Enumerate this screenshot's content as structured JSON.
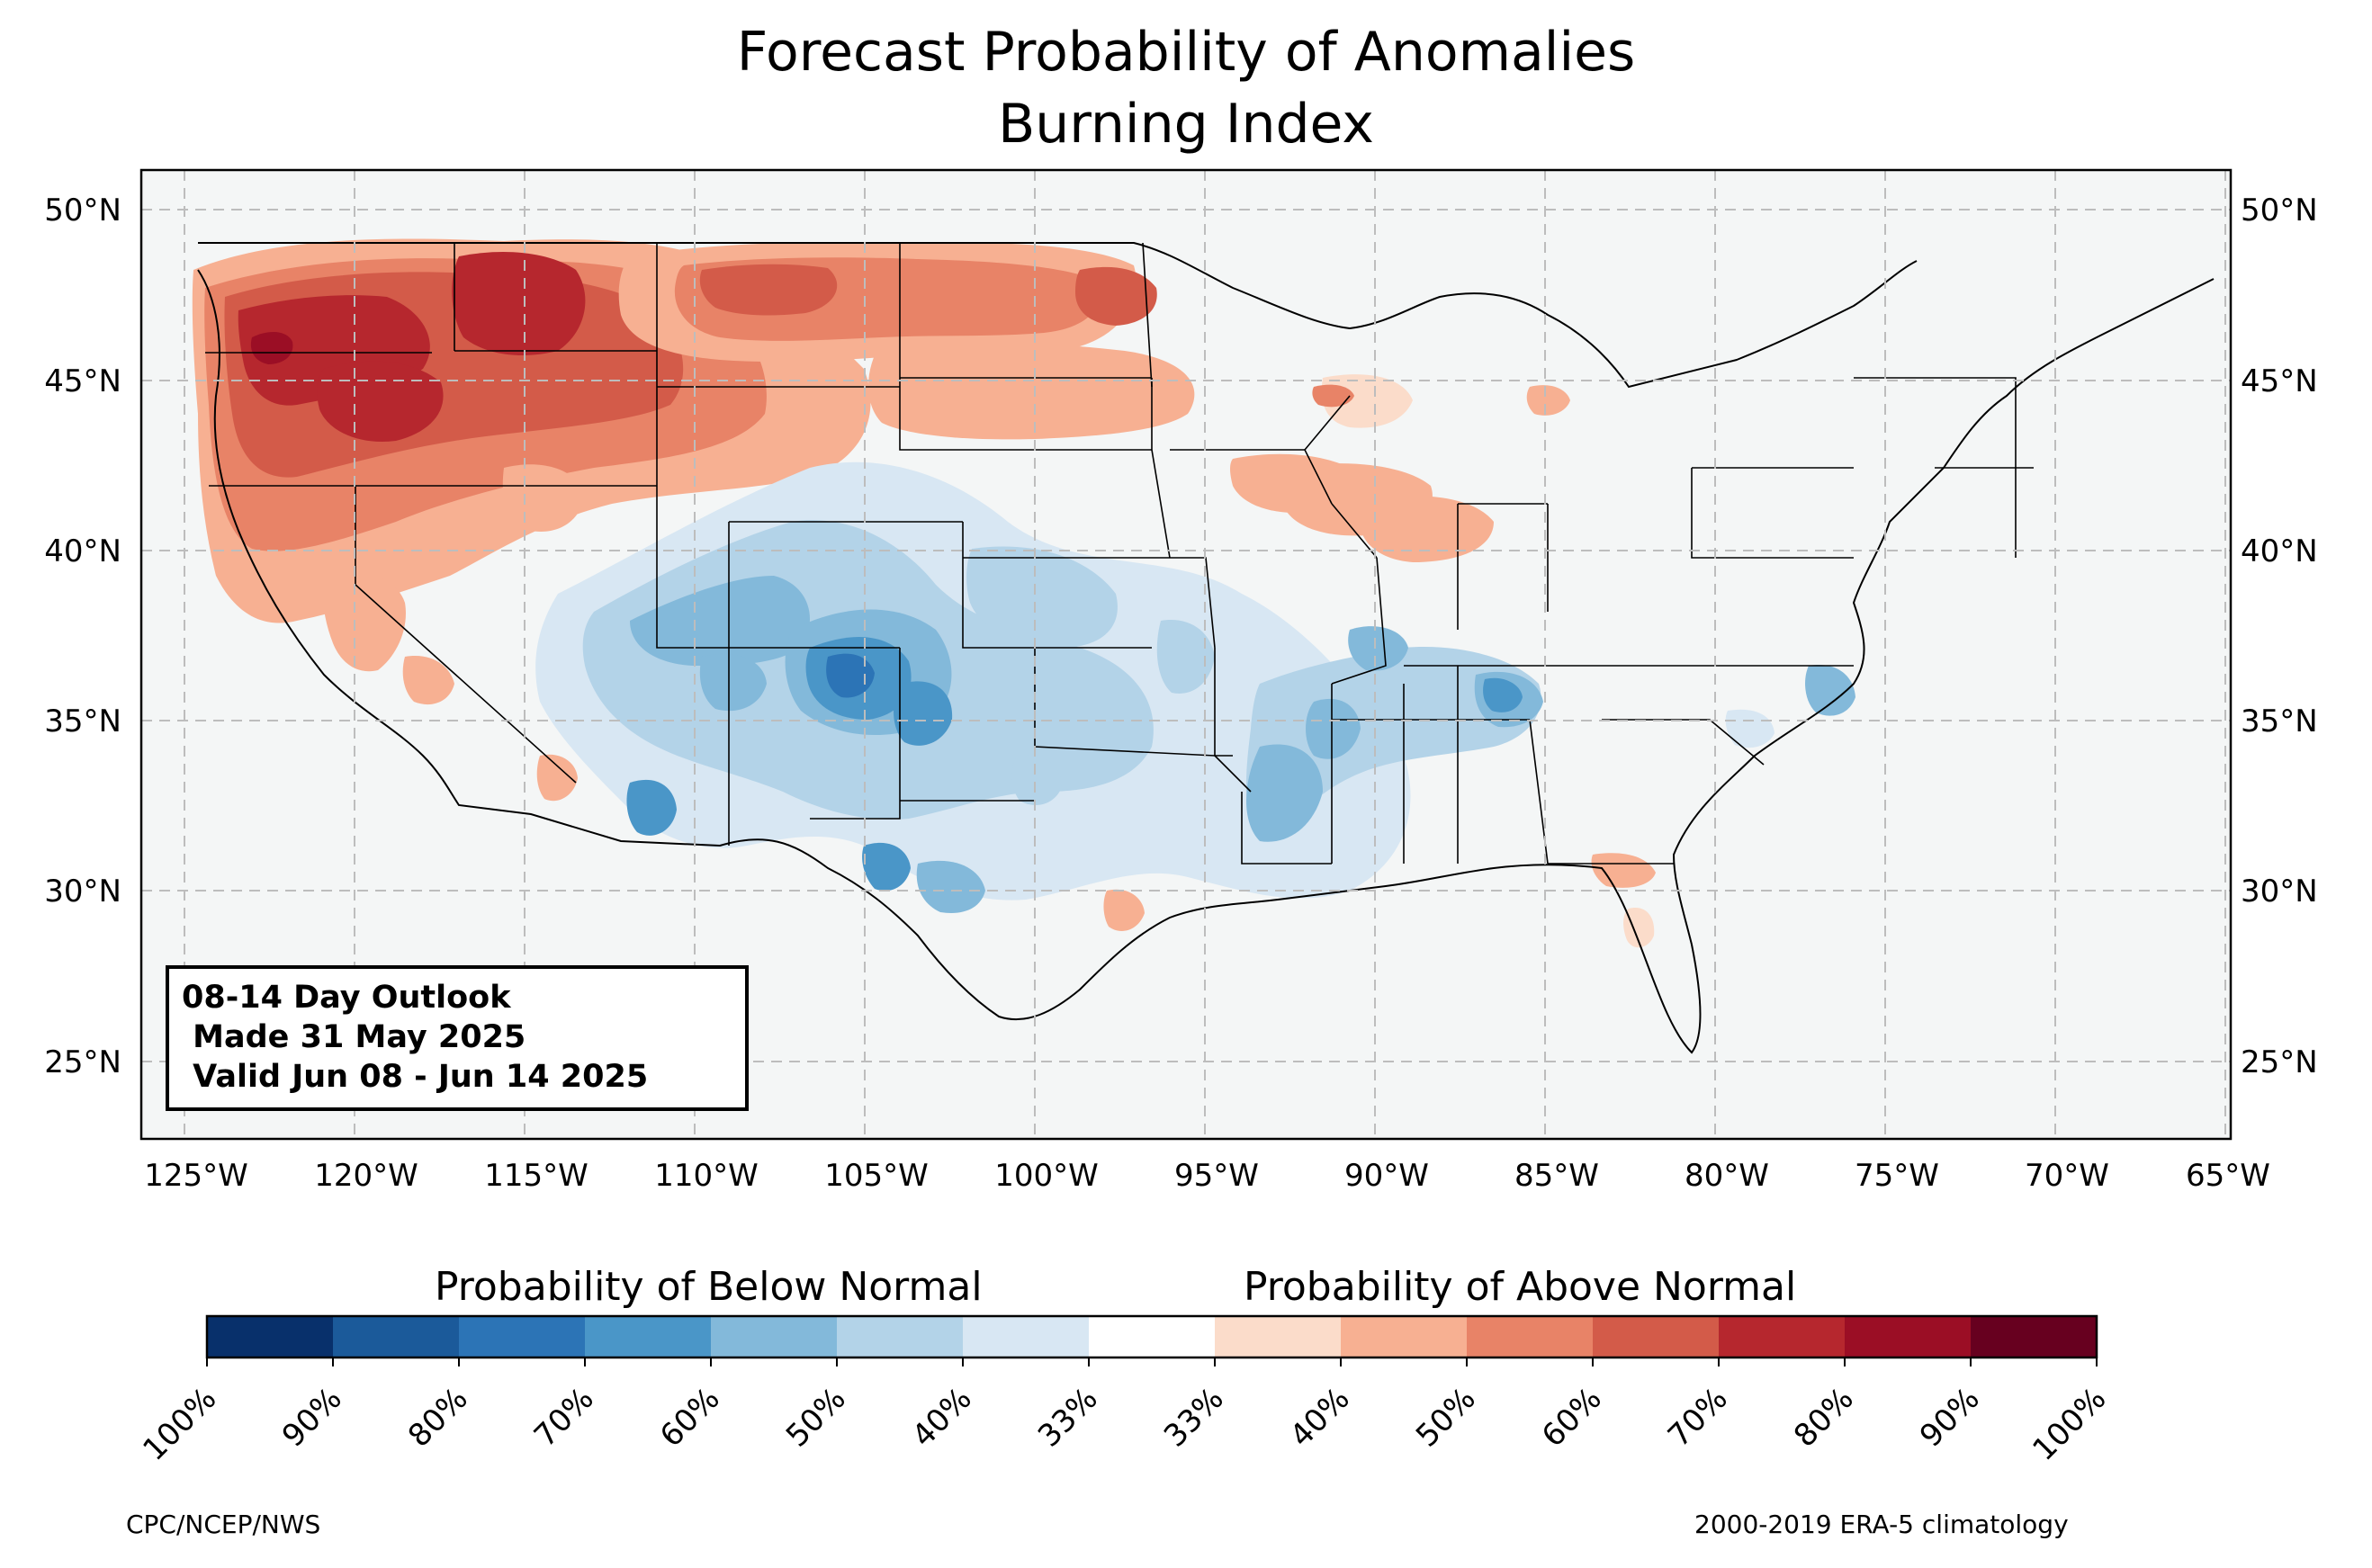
{
  "title": "Forecast Probability of Anomalies",
  "subtitle": "Burning Index",
  "info_box": {
    "line1": "08-14 Day Outlook",
    "line2": " Made 31 May 2025",
    "line3": " Valid Jun 08 - Jun 14 2025"
  },
  "lat_ticks": [
    "50°N",
    "45°N",
    "40°N",
    "35°N",
    "30°N",
    "25°N"
  ],
  "lon_ticks": [
    "125°W",
    "120°W",
    "115°W",
    "110°W",
    "105°W",
    "100°W",
    "95°W",
    "90°W",
    "85°W",
    "80°W",
    "75°W",
    "70°W",
    "65°W"
  ],
  "legend": {
    "below_title": "Probability of Below Normal",
    "above_title": "Probability of Above Normal",
    "tick_labels": [
      "100%",
      "90%",
      "80%",
      "70%",
      "60%",
      "50%",
      "40%",
      "33%",
      "33%",
      "40%",
      "50%",
      "60%",
      "70%",
      "80%",
      "90%",
      "100%"
    ],
    "below_colors": [
      "#08306b",
      "#1b5a9a",
      "#2c74b6",
      "#4a96c8",
      "#83b9da",
      "#b3d3e8",
      "#d8e7f3"
    ],
    "above_colors": [
      "#fbdcca",
      "#f7b092",
      "#e88367",
      "#d35b49",
      "#b6272e",
      "#9b0e25",
      "#67001f"
    ]
  },
  "credits": {
    "left": "CPC/NCEP/NWS",
    "right": "2000-2019 ERA-5 climatology"
  }
}
